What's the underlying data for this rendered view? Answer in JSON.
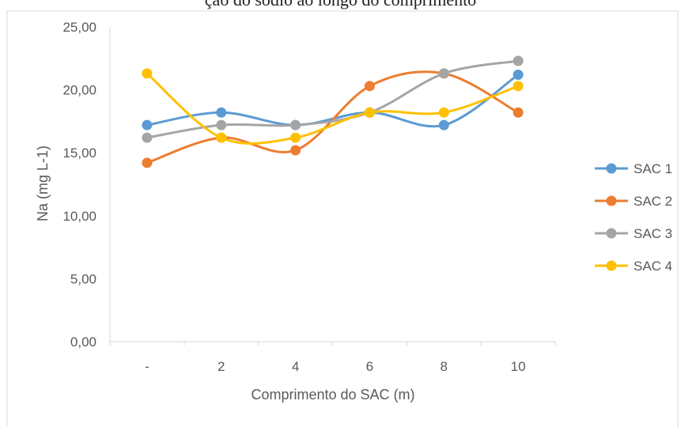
{
  "chart_data": {
    "type": "line",
    "title": "",
    "xlabel": "Comprimento do SAC (m)",
    "ylabel": "Na (mg L-1)",
    "categories": [
      "-",
      "2",
      "4",
      "6",
      "8",
      "10"
    ],
    "ylim": [
      0,
      25
    ],
    "yticks": [
      "0,00",
      "5,00",
      "10,00",
      "15,00",
      "20,00",
      "25,00"
    ],
    "grid": false,
    "smooth": true,
    "legend_position": "right",
    "series": [
      {
        "name": "SAC 1",
        "color": "#5B9BD5",
        "values": [
          17.2,
          18.2,
          17.2,
          18.2,
          17.2,
          21.2
        ]
      },
      {
        "name": "SAC 2",
        "color": "#ED7D31",
        "values": [
          14.2,
          16.2,
          15.2,
          20.3,
          21.3,
          18.2
        ]
      },
      {
        "name": "SAC 3",
        "color": "#A5A5A5",
        "values": [
          16.2,
          17.2,
          17.2,
          18.2,
          21.3,
          22.3
        ]
      },
      {
        "name": "SAC 4",
        "color": "#FFC000",
        "values": [
          21.3,
          16.2,
          16.2,
          18.2,
          18.2,
          20.3
        ]
      }
    ]
  },
  "top_text": "ção do sódio ao longo do comprimento"
}
